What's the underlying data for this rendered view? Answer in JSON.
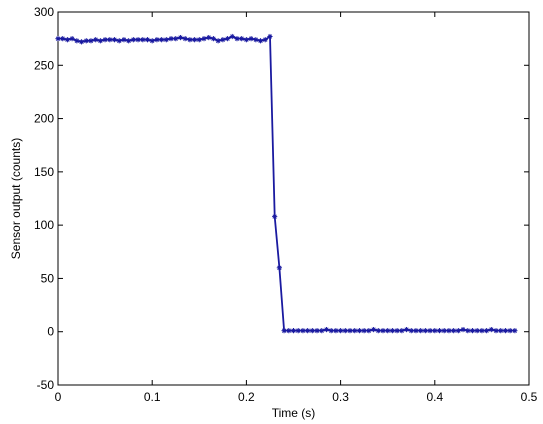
{
  "chart_data": {
    "type": "line",
    "title": "",
    "xlabel": "Time (s)",
    "ylabel": "Sensor output (counts)",
    "xlim": [
      0,
      0.5
    ],
    "ylim": [
      -50,
      300
    ],
    "xticks": [
      0,
      0.1,
      0.2,
      0.3,
      0.4,
      0.5
    ],
    "xtick_labels": [
      "0",
      "0.1",
      "0.2",
      "0.3",
      "0.4",
      "0.5"
    ],
    "yticks": [
      -50,
      0,
      50,
      100,
      150,
      200,
      250,
      300
    ],
    "ytick_labels": [
      "-50",
      "0",
      "50",
      "100",
      "150",
      "200",
      "250",
      "300"
    ],
    "grid": false,
    "legend": "none",
    "line_color": "#1a1aa0",
    "marker": "asterisk",
    "series": [
      {
        "x": [
          0.0,
          0.005,
          0.01,
          0.015,
          0.02,
          0.025,
          0.03,
          0.035,
          0.04,
          0.045,
          0.05,
          0.055,
          0.06,
          0.065,
          0.07,
          0.075,
          0.08,
          0.085,
          0.09,
          0.095,
          0.1,
          0.105,
          0.11,
          0.115,
          0.12,
          0.125,
          0.13,
          0.135,
          0.14,
          0.145,
          0.15,
          0.155,
          0.16,
          0.165,
          0.17,
          0.175,
          0.18,
          0.185,
          0.19,
          0.195,
          0.2,
          0.205,
          0.21,
          0.215,
          0.22,
          0.225,
          0.23,
          0.235,
          0.24,
          0.245,
          0.25,
          0.255,
          0.26,
          0.265,
          0.27,
          0.275,
          0.28,
          0.285,
          0.29,
          0.295,
          0.3,
          0.305,
          0.31,
          0.315,
          0.32,
          0.325,
          0.33,
          0.335,
          0.34,
          0.345,
          0.35,
          0.355,
          0.36,
          0.365,
          0.37,
          0.375,
          0.38,
          0.385,
          0.39,
          0.395,
          0.4,
          0.405,
          0.41,
          0.415,
          0.42,
          0.425,
          0.43,
          0.435,
          0.44,
          0.445,
          0.45,
          0.455,
          0.46,
          0.465,
          0.47,
          0.475,
          0.48,
          0.485
        ],
        "y": [
          275,
          275,
          274,
          275,
          273,
          272,
          273,
          273,
          274,
          273,
          274,
          274,
          274,
          273,
          274,
          273,
          274,
          274,
          274,
          274,
          273,
          274,
          274,
          274,
          275,
          275,
          276,
          275,
          274,
          274,
          274,
          275,
          276,
          275,
          273,
          274,
          275,
          277,
          275,
          275,
          274,
          275,
          274,
          273,
          274,
          277,
          108,
          60,
          1,
          1,
          1,
          1,
          1,
          1,
          1,
          1,
          1,
          2,
          1,
          1,
          1,
          1,
          1,
          1,
          1,
          1,
          1,
          2,
          1,
          1,
          1,
          1,
          1,
          1,
          2,
          1,
          1,
          1,
          1,
          1,
          1,
          1,
          1,
          1,
          1,
          1,
          2,
          1,
          1,
          1,
          1,
          1,
          2,
          1,
          1,
          1,
          1,
          1
        ]
      }
    ]
  }
}
